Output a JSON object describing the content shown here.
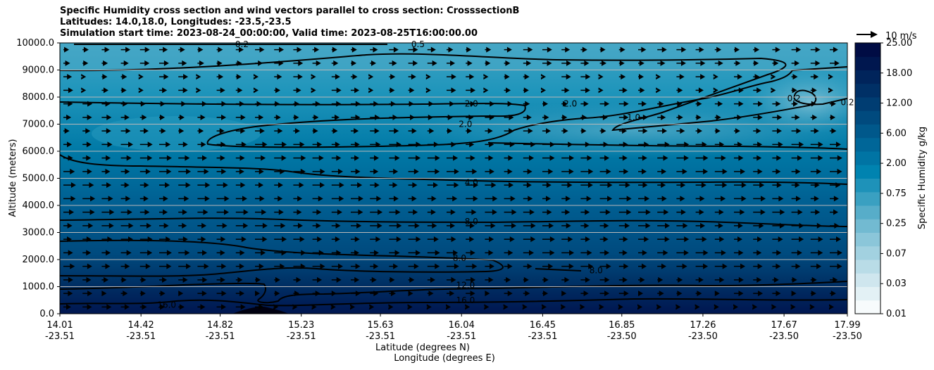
{
  "chart_data": {
    "type": "contourf",
    "title_lines": [
      "Specific Humidity cross section and wind vectors parallel to cross section: CrosssectionB",
      "Latitudes: 14.0,18.0, Longitudes: -23.5,-23.5",
      "Simulation start time: 2023-08-24_00:00:00, Valid time: 2023-08-25T16:00:00.00"
    ],
    "ylabel": "Altitude (meters)",
    "xlabel_lines": [
      "Latitude (degrees N)",
      "Longitude (degrees E)"
    ],
    "ylim": [
      0,
      10000
    ],
    "y_ticks": [
      "10000.0",
      "9000.0",
      "8000.0",
      "7000.0",
      "6000.0",
      "5000.0",
      "4000.0",
      "3000.0",
      "2000.0",
      "1000.0",
      "0.0"
    ],
    "x_ticks": [
      {
        "lat": "14.01",
        "lon": "-23.51"
      },
      {
        "lat": "14.42",
        "lon": "-23.51"
      },
      {
        "lat": "14.82",
        "lon": "-23.51"
      },
      {
        "lat": "15.23",
        "lon": "-23.51"
      },
      {
        "lat": "15.63",
        "lon": "-23.51"
      },
      {
        "lat": "16.04",
        "lon": "-23.51"
      },
      {
        "lat": "16.45",
        "lon": "-23.51"
      },
      {
        "lat": "16.85",
        "lon": "-23.50"
      },
      {
        "lat": "17.26",
        "lon": "-23.50"
      },
      {
        "lat": "17.67",
        "lon": "-23.50"
      },
      {
        "lat": "17.99",
        "lon": "-23.50"
      }
    ],
    "grid": "horizontal",
    "colorbar": {
      "label": "Specific Humidity g/kg",
      "tick_labels": [
        "25.00",
        "18.00",
        "12.00",
        "6.00",
        "2.00",
        "0.75",
        "0.25",
        "0.07",
        "0.03",
        "0.01"
      ],
      "colors": [
        "#f7fbfc",
        "#e3f1f5",
        "#cfe6ee",
        "#b9dce7",
        "#a2d1e0",
        "#8bc6d9",
        "#72bad1",
        "#57adc9",
        "#3aa0c1",
        "#1e92b9",
        "#0083b0",
        "#0074a4",
        "#006698",
        "#00588b",
        "#004a7e",
        "#003d72",
        "#003066",
        "#00245b",
        "#00174f",
        "#000c44"
      ]
    },
    "quiver_key": "10 m/s",
    "contour_labels": [
      {
        "text": "0.2",
        "lat": 14.93,
        "alt": 9950
      },
      {
        "text": "0.5",
        "lat": 15.82,
        "alt": 9950
      },
      {
        "text": "2.0",
        "lat": 16.09,
        "alt": 7750
      },
      {
        "text": "2.0",
        "lat": 16.06,
        "alt": 7000
      },
      {
        "text": "2.0",
        "lat": 16.59,
        "alt": 7750
      },
      {
        "text": "1.0",
        "lat": 16.91,
        "alt": 7250
      },
      {
        "text": "0.2",
        "lat": 17.72,
        "alt": 7950
      },
      {
        "text": "0.2",
        "lat": 17.99,
        "alt": 7800
      },
      {
        "text": "4.0",
        "lat": 16.09,
        "alt": 4850
      },
      {
        "text": "8.0",
        "lat": 16.09,
        "alt": 3400
      },
      {
        "text": "8.0",
        "lat": 16.03,
        "alt": 2050
      },
      {
        "text": "8.0",
        "lat": 16.72,
        "alt": 1600
      },
      {
        "text": "12.0",
        "lat": 16.06,
        "alt": 1050
      },
      {
        "text": "16.0",
        "lat": 16.06,
        "alt": 500
      },
      {
        "text": "16.0",
        "lat": 14.55,
        "alt": 320
      }
    ]
  }
}
